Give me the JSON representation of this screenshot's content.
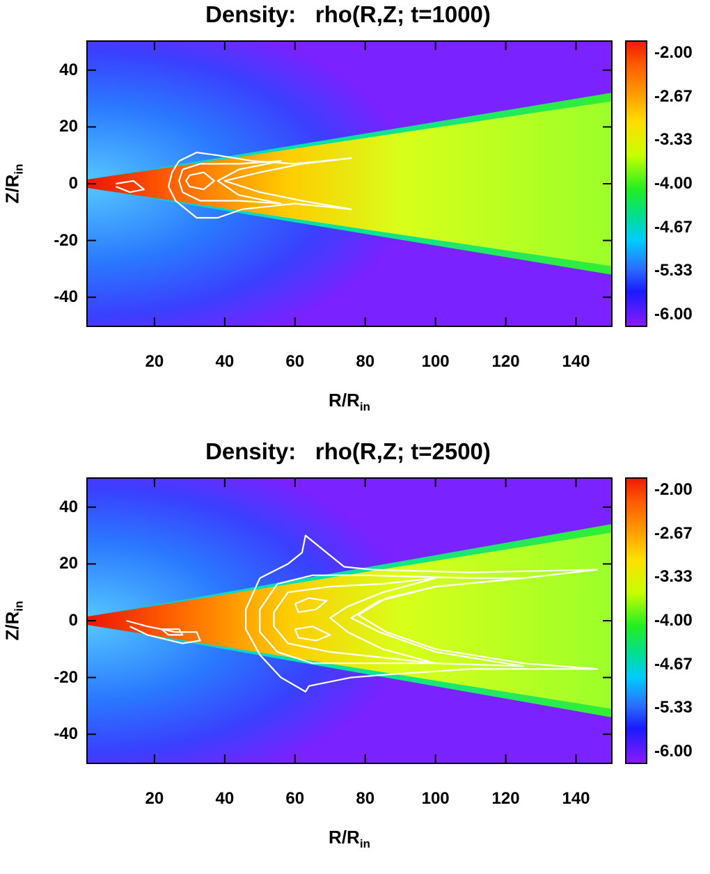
{
  "chart_data": [
    {
      "type": "heatmap",
      "title": "Density:   rho(R,Z; t=1000)",
      "xlabel": "R/R",
      "xlabel_sub": "in",
      "ylabel": "Z/R",
      "ylabel_sub": "in",
      "xlim": [
        1,
        150
      ],
      "ylim": [
        -50,
        50
      ],
      "x_ticks": [
        20,
        40,
        60,
        80,
        100,
        120,
        140
      ],
      "y_ticks": [
        40,
        20,
        0,
        -20,
        -40
      ],
      "colorbar": {
        "range": [
          -6.0,
          -2.0
        ],
        "tick_labels": [
          "-2.00",
          "-2.67",
          "-3.33",
          "-4.00",
          "-4.67",
          "-5.33",
          "-6.00"
        ]
      },
      "disk": {
        "outer_half_height_at_R150": 30,
        "inner_R": 1
      },
      "contour_color": "#ffffff",
      "contours": [
        [
          [
            27,
            8
          ],
          [
            32,
            11
          ],
          [
            38,
            10
          ],
          [
            48,
            8
          ],
          [
            60,
            7
          ],
          [
            76,
            9
          ],
          [
            62,
            7
          ],
          [
            50,
            4
          ],
          [
            40,
            1
          ],
          [
            50,
            -3
          ],
          [
            62,
            -6
          ],
          [
            76,
            -9
          ],
          [
            60,
            -7
          ],
          [
            45,
            -9
          ],
          [
            38,
            -12
          ],
          [
            32,
            -12
          ],
          [
            26,
            -6
          ],
          [
            24,
            -1
          ],
          [
            25,
            4
          ],
          [
            27,
            8
          ]
        ],
        [
          [
            28,
            5
          ],
          [
            33,
            7
          ],
          [
            44,
            7
          ],
          [
            56,
            8
          ],
          [
            44,
            5
          ],
          [
            38,
            1
          ],
          [
            44,
            -4
          ],
          [
            56,
            -7
          ],
          [
            44,
            -6
          ],
          [
            33,
            -6
          ],
          [
            28,
            -3
          ],
          [
            27,
            1
          ],
          [
            28,
            5
          ]
        ],
        [
          [
            30,
            3
          ],
          [
            34,
            4
          ],
          [
            37,
            1
          ],
          [
            34,
            -2
          ],
          [
            30,
            -1
          ],
          [
            29,
            1
          ],
          [
            30,
            3
          ]
        ],
        [
          [
            9,
            0
          ],
          [
            14,
            1
          ],
          [
            17,
            -2
          ],
          [
            13,
            -3
          ],
          [
            9,
            -1
          ]
        ]
      ]
    },
    {
      "type": "heatmap",
      "title": "Density:   rho(R,Z; t=2500)",
      "xlabel": "R/R",
      "xlabel_sub": "in",
      "ylabel": "Z/R",
      "ylabel_sub": "in",
      "xlim": [
        1,
        150
      ],
      "ylim": [
        -50,
        50
      ],
      "x_ticks": [
        20,
        40,
        60,
        80,
        100,
        120,
        140
      ],
      "y_ticks": [
        40,
        20,
        0,
        -20,
        -40
      ],
      "colorbar": {
        "range": [
          -6.0,
          -2.0
        ],
        "tick_labels": [
          "-2.00",
          "-2.67",
          "-3.33",
          "-4.00",
          "-4.67",
          "-5.33",
          "-6.00"
        ]
      },
      "disk": {
        "outer_half_height_at_R150": 32,
        "inner_R": 1
      },
      "contour_color": "#ffffff",
      "contours": [
        [
          [
            50,
            15
          ],
          [
            58,
            20
          ],
          [
            62,
            24
          ],
          [
            63,
            30
          ],
          [
            68,
            25
          ],
          [
            74,
            19
          ],
          [
            82,
            18
          ],
          [
            110,
            17
          ],
          [
            146,
            18
          ],
          [
            125,
            15
          ],
          [
            100,
            12
          ],
          [
            86,
            8
          ],
          [
            78,
            2
          ],
          [
            86,
            -4
          ],
          [
            100,
            -10
          ],
          [
            125,
            -15
          ],
          [
            146,
            -17
          ],
          [
            110,
            -17
          ],
          [
            86,
            -19
          ],
          [
            76,
            -20
          ],
          [
            64,
            -23
          ],
          [
            63,
            -25
          ],
          [
            56,
            -20
          ],
          [
            50,
            -12
          ],
          [
            46,
            -3
          ],
          [
            46,
            4
          ],
          [
            50,
            15
          ]
        ],
        [
          [
            55,
            13
          ],
          [
            65,
            16
          ],
          [
            80,
            16
          ],
          [
            110,
            15
          ],
          [
            125,
            15
          ],
          [
            100,
            12
          ],
          [
            84,
            7
          ],
          [
            76,
            1
          ],
          [
            84,
            -4
          ],
          [
            100,
            -11
          ],
          [
            125,
            -16
          ],
          [
            100,
            -15
          ],
          [
            80,
            -15
          ],
          [
            65,
            -15
          ],
          [
            55,
            -11
          ],
          [
            50,
            -4
          ],
          [
            50,
            4
          ],
          [
            55,
            13
          ]
        ],
        [
          [
            58,
            10
          ],
          [
            70,
            12
          ],
          [
            85,
            13
          ],
          [
            100,
            15
          ],
          [
            85,
            10
          ],
          [
            75,
            5
          ],
          [
            70,
            1
          ],
          [
            75,
            -4
          ],
          [
            85,
            -10
          ],
          [
            100,
            -15
          ],
          [
            85,
            -13
          ],
          [
            70,
            -11
          ],
          [
            58,
            -8
          ],
          [
            54,
            -2
          ],
          [
            54,
            3
          ],
          [
            58,
            10
          ]
        ],
        [
          [
            60,
            6
          ],
          [
            64,
            8
          ],
          [
            69,
            7
          ],
          [
            66,
            4
          ],
          [
            61,
            3
          ],
          [
            60,
            6
          ]
        ],
        [
          [
            60,
            -3
          ],
          [
            65,
            -2
          ],
          [
            70,
            -5
          ],
          [
            66,
            -7
          ],
          [
            61,
            -6
          ],
          [
            60,
            -3
          ]
        ],
        [
          [
            12,
            0
          ],
          [
            18,
            -2
          ],
          [
            26,
            -4
          ],
          [
            32,
            -4
          ],
          [
            33,
            -7
          ],
          [
            28,
            -8
          ],
          [
            18,
            -5
          ],
          [
            13,
            -2
          ]
        ],
        [
          [
            22,
            -3
          ],
          [
            27,
            -3
          ],
          [
            28,
            -5
          ],
          [
            24,
            -5
          ],
          [
            22,
            -3
          ]
        ]
      ]
    }
  ]
}
